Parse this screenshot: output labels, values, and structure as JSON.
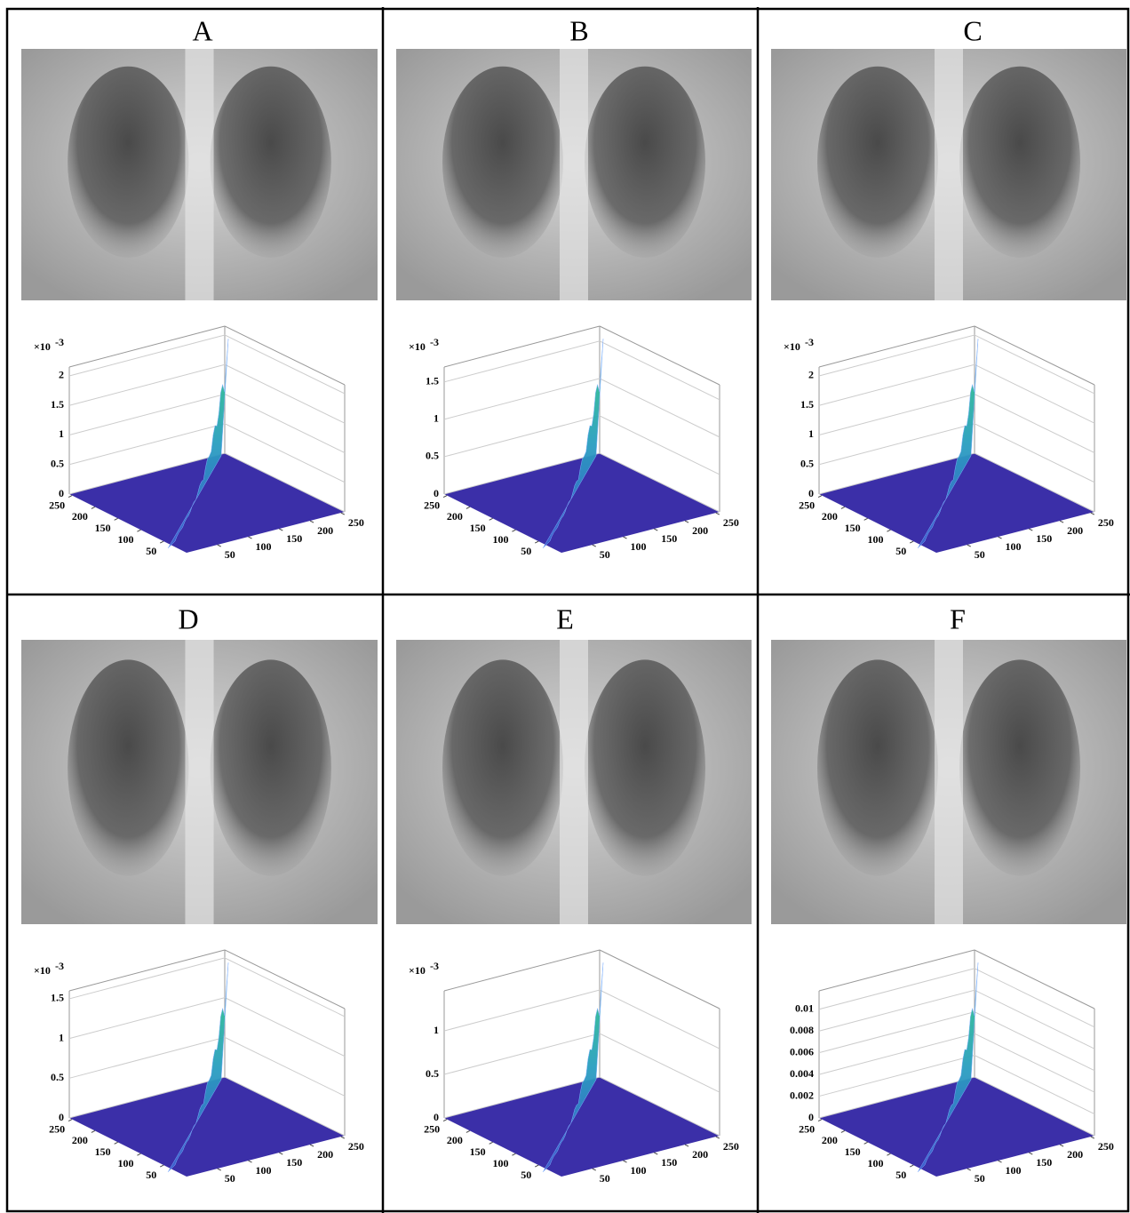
{
  "panels": [
    {
      "label": "A",
      "scale_label": "×10",
      "scale_exponent": "-3",
      "zlim": [
        0,
        2.15
      ],
      "zticks": [
        0,
        0.5,
        1,
        1.5,
        2
      ],
      "xlim": [
        0,
        256
      ],
      "xticks": [
        50,
        100,
        150,
        200,
        250
      ],
      "ylim": [
        0,
        256
      ],
      "yticks": [
        50,
        100,
        150,
        200,
        250
      ]
    },
    {
      "label": "B",
      "scale_label": "×10",
      "scale_exponent": "-3",
      "zlim": [
        0,
        1.7
      ],
      "zticks": [
        0,
        0.5,
        1,
        1.5
      ],
      "xlim": [
        0,
        256
      ],
      "xticks": [
        50,
        100,
        150,
        200,
        250
      ],
      "ylim": [
        0,
        256
      ],
      "yticks": [
        50,
        100,
        150,
        200,
        250
      ]
    },
    {
      "label": "C",
      "scale_label": "×10",
      "scale_exponent": "-3",
      "zlim": [
        0,
        2.15
      ],
      "zticks": [
        0,
        0.5,
        1,
        1.5,
        2
      ],
      "xlim": [
        0,
        256
      ],
      "xticks": [
        50,
        100,
        150,
        200,
        250
      ],
      "ylim": [
        0,
        256
      ],
      "yticks": [
        50,
        100,
        150,
        200,
        250
      ]
    },
    {
      "label": "D",
      "scale_label": "×10",
      "scale_exponent": "-3",
      "zlim": [
        0,
        1.6
      ],
      "zticks": [
        0,
        0.5,
        1,
        1.5
      ],
      "xlim": [
        0,
        256
      ],
      "xticks": [
        50,
        100,
        150,
        200,
        250
      ],
      "ylim": [
        0,
        256
      ],
      "yticks": [
        50,
        100,
        150,
        200,
        250
      ]
    },
    {
      "label": "E",
      "scale_label": "×10",
      "scale_exponent": "-3",
      "zlim": [
        0,
        1.46
      ],
      "zticks": [
        0,
        0.5,
        1
      ],
      "xlim": [
        0,
        256
      ],
      "xticks": [
        50,
        100,
        150,
        200,
        250
      ],
      "ylim": [
        0,
        256
      ],
      "yticks": [
        50,
        100,
        150,
        200,
        250
      ]
    },
    {
      "label": "F",
      "zlim": [
        0,
        0.0117
      ],
      "zticks": [
        0,
        0.002,
        0.004,
        0.006,
        0.008,
        0.01
      ],
      "xlim": [
        0,
        256
      ],
      "xticks": [
        50,
        100,
        150,
        200,
        250
      ],
      "ylim": [
        0,
        256
      ],
      "yticks": [
        50,
        100,
        150,
        200,
        250
      ]
    }
  ]
}
